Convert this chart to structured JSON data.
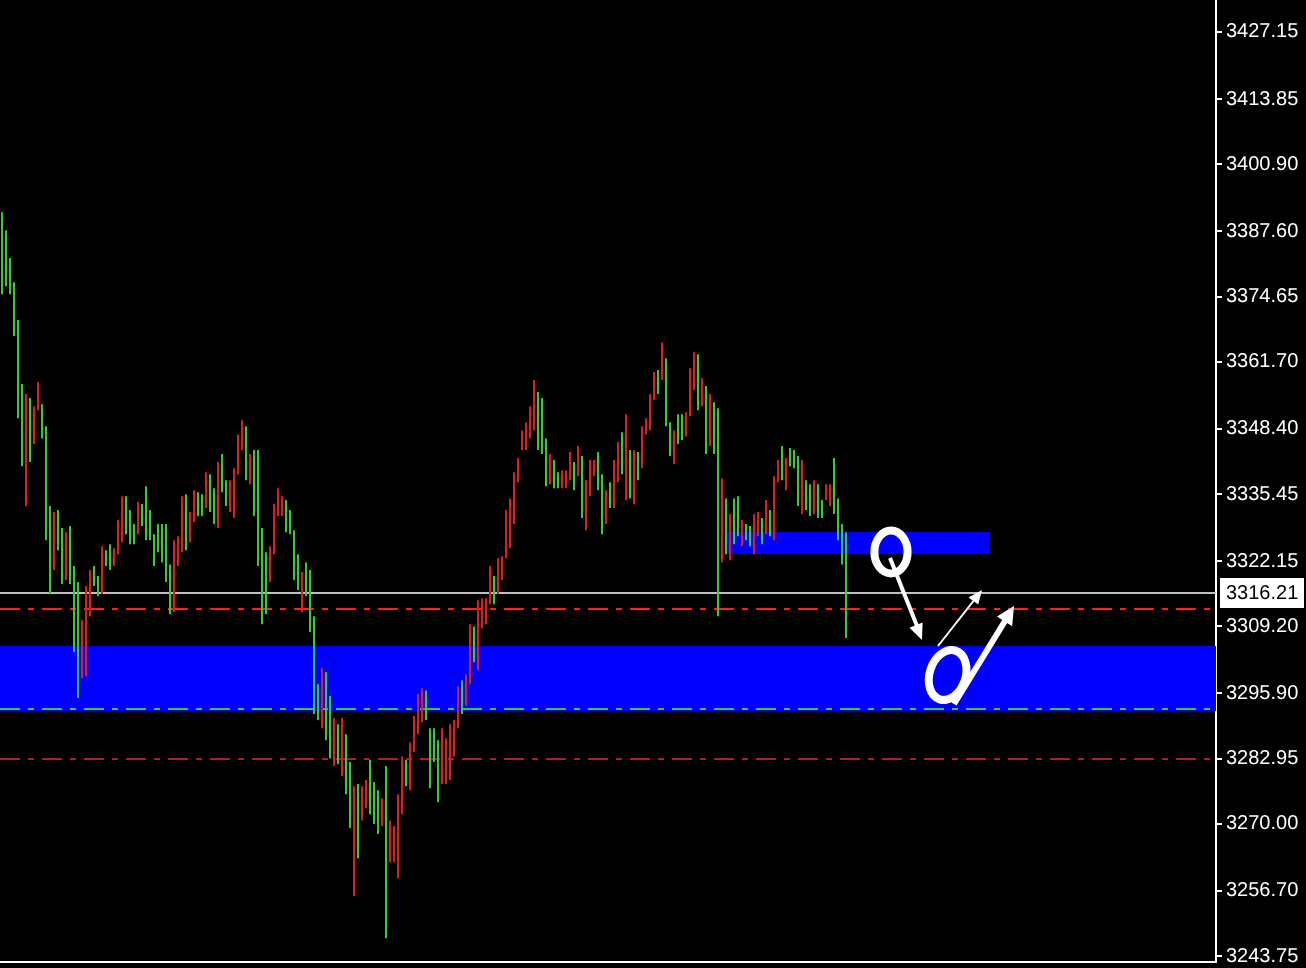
{
  "chart_data": {
    "type": "candlestick",
    "categories": [
      null,
      null,
      null,
      null,
      null,
      null,
      null,
      null,
      null,
      null,
      null,
      null,
      null,
      null,
      null,
      null,
      null,
      null,
      null,
      null,
      null,
      null,
      null,
      null,
      null,
      null,
      null,
      null,
      null,
      null,
      null,
      null,
      null,
      null,
      null,
      null,
      null,
      null,
      null,
      null,
      null,
      null,
      null,
      null,
      null,
      null,
      null,
      null,
      null,
      null,
      null,
      null,
      null,
      null,
      null,
      null,
      null,
      null,
      null,
      null,
      null,
      null,
      null,
      null,
      null,
      null,
      null,
      null,
      null,
      null,
      null,
      null,
      null,
      null,
      null,
      null,
      null,
      null,
      null,
      null,
      null,
      null,
      null,
      null,
      null,
      null,
      null,
      null,
      null,
      null,
      null,
      null,
      null,
      null,
      null,
      null,
      null,
      null,
      null,
      null,
      null,
      null,
      null,
      null,
      null,
      null,
      null,
      null,
      null,
      null,
      null,
      null,
      null,
      null,
      null,
      null,
      null,
      null,
      null,
      null,
      null,
      null,
      null,
      null,
      null,
      null,
      null,
      null,
      null,
      null,
      null,
      null,
      null,
      null,
      null,
      null,
      null,
      null,
      null,
      null,
      null,
      null,
      null,
      null,
      null,
      null,
      null,
      null,
      null,
      null,
      null,
      null,
      null,
      null,
      null,
      null,
      null,
      null,
      null,
      null,
      null,
      null,
      null,
      null,
      null,
      null,
      null,
      null,
      null,
      null,
      null,
      null,
      null,
      null,
      null,
      null,
      null,
      null,
      null,
      null,
      null,
      null,
      null,
      null,
      null,
      null,
      null,
      null,
      null,
      null,
      null,
      null,
      null,
      null,
      null,
      null,
      null,
      null,
      null,
      null,
      null,
      null,
      null,
      null,
      null,
      null,
      null,
      null,
      null,
      null,
      null,
      null,
      null,
      null,
      null,
      null,
      null,
      null,
      null,
      null,
      null,
      null,
      null,
      null,
      null,
      null,
      null,
      null,
      null,
      null,
      null,
      null,
      null,
      null,
      null,
      null,
      null,
      null,
      null,
      null,
      null,
      null,
      null,
      null,
      null,
      null,
      null,
      null,
      null,
      null,
      null,
      null,
      null,
      null,
      null,
      null,
      null,
      null,
      null,
      null,
      null,
      null,
      null,
      null,
      null,
      null,
      null,
      null,
      null,
      null,
      null,
      null,
      null,
      null,
      null,
      null,
      null,
      null,
      null,
      null,
      null,
      null,
      null,
      null,
      null,
      null,
      null,
      null,
      null,
      null,
      null,
      null,
      null,
      null,
      null,
      null,
      null,
      null,
      null,
      null,
      null,
      null,
      null,
      null
    ],
    "ohlc": [
      [
        3375.1,
        3391.4,
        3375.1,
        3391.4
      ],
      [
        3376.7,
        3387.8,
        3376.7,
        3387.8
      ],
      [
        3375.1,
        3382.3,
        3375.1,
        3382.3
      ],
      [
        3366.8,
        3377.5,
        3366.8,
        3377.5
      ],
      [
        3350.5,
        3370.0,
        3350.5,
        3370.0
      ],
      [
        3341.0,
        3357.3,
        3341.0,
        3357.3
      ],
      [
        3355.3,
        3355.3,
        3333.1,
        3333.1
      ],
      [
        3341.8,
        3354.5,
        3341.8,
        3354.5
      ],
      [
        3352.9,
        3352.9,
        3345.4,
        3345.4
      ],
      [
        3357.7,
        3357.7,
        3352.1,
        3352.1
      ],
      [
        3346.5,
        3353.3,
        3346.5,
        3353.3
      ],
      [
        3326.3,
        3348.9,
        3326.3,
        3348.9
      ],
      [
        3315.6,
        3333.1,
        3315.6,
        3333.1
      ],
      [
        3331.9,
        3331.9,
        3320.4,
        3320.4
      ],
      [
        3324.3,
        3332.3,
        3324.3,
        3332.3
      ],
      [
        3317.6,
        3328.7,
        3317.6,
        3328.7
      ],
      [
        3327.9,
        3327.9,
        3318.4,
        3318.4
      ],
      [
        3317.6,
        3329.1,
        3317.6,
        3329.1
      ],
      [
        3304.1,
        3321.2,
        3304.1,
        3321.2
      ],
      [
        3295.0,
        3318.0,
        3295.0,
        3318.0
      ],
      [
        3310.4,
        3310.4,
        3298.9,
        3298.9
      ],
      [
        3317.2,
        3317.2,
        3299.3,
        3299.3
      ],
      [
        3320.4,
        3320.4,
        3311.2,
        3311.2
      ],
      [
        3317.2,
        3321.2,
        3317.2,
        3321.2
      ],
      [
        3315.2,
        3319.2,
        3315.2,
        3319.2
      ],
      [
        3325.1,
        3325.1,
        3315.6,
        3315.6
      ],
      [
        3321.2,
        3324.3,
        3321.2,
        3324.3
      ],
      [
        3320.4,
        3325.5,
        3320.4,
        3325.5
      ],
      [
        3324.7,
        3324.7,
        3321.2,
        3321.2
      ],
      [
        3330.3,
        3330.3,
        3323.5,
        3323.5
      ],
      [
        3335.0,
        3335.0,
        3325.9,
        3325.9
      ],
      [
        3327.5,
        3335.0,
        3327.5,
        3335.0
      ],
      [
        3325.5,
        3332.3,
        3325.5,
        3332.3
      ],
      [
        3325.5,
        3329.5,
        3325.5,
        3329.5
      ],
      [
        3333.9,
        3333.9,
        3327.5,
        3327.5
      ],
      [
        3329.1,
        3333.5,
        3329.1,
        3333.5
      ],
      [
        3326.3,
        3337.0,
        3326.3,
        3337.0
      ],
      [
        3326.3,
        3332.3,
        3326.3,
        3332.3
      ],
      [
        3321.2,
        3327.5,
        3321.2,
        3327.5
      ],
      [
        3323.9,
        3329.5,
        3323.9,
        3329.5
      ],
      [
        3321.9,
        3329.5,
        3321.9,
        3329.5
      ],
      [
        3318.0,
        3329.5,
        3318.0,
        3329.5
      ],
      [
        3311.6,
        3321.5,
        3311.6,
        3321.5
      ],
      [
        3326.3,
        3326.3,
        3312.0,
        3312.0
      ],
      [
        3327.1,
        3327.1,
        3321.2,
        3321.2
      ],
      [
        3335.0,
        3335.0,
        3323.9,
        3323.9
      ],
      [
        3324.3,
        3335.4,
        3324.3,
        3335.4
      ],
      [
        3331.9,
        3331.9,
        3325.9,
        3325.9
      ],
      [
        3336.2,
        3336.2,
        3329.9,
        3329.9
      ],
      [
        3331.1,
        3335.8,
        3331.1,
        3335.8
      ],
      [
        3331.1,
        3335.4,
        3331.1,
        3335.4
      ],
      [
        3339.8,
        3339.8,
        3332.7,
        3332.7
      ],
      [
        3331.9,
        3339.4,
        3331.9,
        3339.4
      ],
      [
        3329.5,
        3336.6,
        3329.5,
        3336.6
      ],
      [
        3341.8,
        3341.8,
        3328.7,
        3328.7
      ],
      [
        3335.8,
        3343.4,
        3335.8,
        3343.4
      ],
      [
        3333.1,
        3338.2,
        3333.1,
        3338.2
      ],
      [
        3338.2,
        3338.2,
        3331.9,
        3331.9
      ],
      [
        3340.6,
        3340.6,
        3330.7,
        3330.7
      ],
      [
        3347.3,
        3347.3,
        3339.4,
        3339.4
      ],
      [
        3350.1,
        3350.1,
        3344.2,
        3344.2
      ],
      [
        3338.2,
        3348.9,
        3338.2,
        3348.9
      ],
      [
        3343.4,
        3343.4,
        3337.4,
        3337.4
      ],
      [
        3331.1,
        3344.2,
        3331.1,
        3344.2
      ],
      [
        3321.2,
        3344.2,
        3321.2,
        3344.2
      ],
      [
        3309.6,
        3328.7,
        3309.6,
        3328.7
      ],
      [
        3311.6,
        3323.9,
        3311.6,
        3323.9
      ],
      [
        3325.1,
        3325.1,
        3318.0,
        3318.0
      ],
      [
        3333.5,
        3333.5,
        3323.5,
        3323.5
      ],
      [
        3336.6,
        3336.6,
        3331.1,
        3331.1
      ],
      [
        3335.0,
        3335.0,
        3331.1,
        3331.1
      ],
      [
        3327.9,
        3334.3,
        3327.9,
        3334.3
      ],
      [
        3327.5,
        3332.3,
        3327.5,
        3332.3
      ],
      [
        3318.4,
        3328.3,
        3318.4,
        3328.3
      ],
      [
        3316.4,
        3323.5,
        3316.4,
        3323.5
      ],
      [
        3320.0,
        3320.0,
        3312.0,
        3312.0
      ],
      [
        3315.2,
        3321.9,
        3315.2,
        3321.9
      ],
      [
        3308.1,
        3320.4,
        3308.1,
        3320.4
      ],
      [
        3291.8,
        3311.2,
        3291.8,
        3311.2
      ],
      [
        3290.6,
        3297.7,
        3290.6,
        3297.7
      ],
      [
        3300.9,
        3300.9,
        3289.0,
        3289.0
      ],
      [
        3286.6,
        3300.1,
        3286.6,
        3300.1
      ],
      [
        3283.0,
        3295.4,
        3283.0,
        3295.4
      ],
      [
        3291.0,
        3291.0,
        3281.5,
        3281.5
      ],
      [
        3281.9,
        3289.8,
        3281.9,
        3289.8
      ],
      [
        3291.0,
        3291.0,
        3279.5,
        3279.5
      ],
      [
        3275.9,
        3287.8,
        3275.9,
        3287.8
      ],
      [
        3269.2,
        3282.3,
        3269.2,
        3282.3
      ],
      [
        3277.5,
        3277.5,
        3255.7,
        3255.7
      ],
      [
        3263.2,
        3277.9,
        3263.2,
        3277.9
      ],
      [
        3277.5,
        3277.5,
        3270.7,
        3270.7
      ],
      [
        3278.7,
        3278.7,
        3273.1,
        3273.1
      ],
      [
        3271.9,
        3282.7,
        3271.9,
        3282.7
      ],
      [
        3270.0,
        3278.3,
        3270.0,
        3278.3
      ],
      [
        3268.0,
        3276.7,
        3268.0,
        3276.7
      ],
      [
        3275.1,
        3275.1,
        3269.6,
        3269.6
      ],
      [
        3247.3,
        3281.5,
        3247.3,
        3281.5
      ],
      [
        3270.7,
        3270.7,
        3262.4,
        3262.4
      ],
      [
        3269.6,
        3269.6,
        3262.4,
        3262.4
      ],
      [
        3275.9,
        3275.9,
        3259.2,
        3259.2
      ],
      [
        3283.4,
        3283.4,
        3271.9,
        3271.9
      ],
      [
        3277.5,
        3282.7,
        3277.5,
        3282.7
      ],
      [
        3286.2,
        3286.2,
        3276.7,
        3276.7
      ],
      [
        3291.4,
        3291.4,
        3284.2,
        3284.2
      ],
      [
        3295.8,
        3295.8,
        3287.8,
        3287.8
      ],
      [
        3296.9,
        3296.9,
        3290.2,
        3290.2
      ],
      [
        3290.6,
        3296.5,
        3290.6,
        3296.5
      ],
      [
        3277.1,
        3289.0,
        3277.1,
        3289.0
      ],
      [
        3282.3,
        3289.0,
        3282.3,
        3289.0
      ],
      [
        3274.3,
        3286.6,
        3274.3,
        3286.6
      ],
      [
        3289.0,
        3289.0,
        3277.9,
        3277.9
      ],
      [
        3287.0,
        3287.0,
        3277.9,
        3277.9
      ],
      [
        3289.8,
        3289.8,
        3278.7,
        3278.7
      ],
      [
        3290.6,
        3290.6,
        3283.4,
        3283.4
      ],
      [
        3297.3,
        3297.3,
        3289.0,
        3289.0
      ],
      [
        3291.8,
        3298.5,
        3291.8,
        3298.5
      ],
      [
        3299.7,
        3299.7,
        3293.4,
        3293.4
      ],
      [
        3309.6,
        3309.6,
        3297.7,
        3297.7
      ],
      [
        3302.1,
        3309.2,
        3302.1,
        3309.2
      ],
      [
        3314.4,
        3314.4,
        3300.5,
        3300.5
      ],
      [
        3314.8,
        3314.8,
        3308.8,
        3308.8
      ],
      [
        3314.8,
        3314.8,
        3309.6,
        3309.6
      ],
      [
        3321.2,
        3321.2,
        3313.6,
        3313.6
      ],
      [
        3313.6,
        3319.2,
        3313.6,
        3319.2
      ],
      [
        3322.7,
        3322.7,
        3315.6,
        3315.6
      ],
      [
        3323.1,
        3323.1,
        3318.4,
        3318.4
      ],
      [
        3332.3,
        3332.3,
        3322.7,
        3322.7
      ],
      [
        3334.6,
        3334.6,
        3324.7,
        3324.7
      ],
      [
        3339.8,
        3339.8,
        3329.5,
        3329.5
      ],
      [
        3342.6,
        3342.6,
        3337.8,
        3337.8
      ],
      [
        3348.1,
        3348.1,
        3344.2,
        3344.2
      ],
      [
        3349.7,
        3349.7,
        3344.2,
        3344.2
      ],
      [
        3352.9,
        3352.9,
        3346.5,
        3346.5
      ],
      [
        3358.1,
        3358.1,
        3348.1,
        3348.1
      ],
      [
        3344.2,
        3355.7,
        3344.2,
        3355.7
      ],
      [
        3343.4,
        3354.5,
        3343.4,
        3354.5
      ],
      [
        3337.0,
        3346.5,
        3337.0,
        3346.5
      ],
      [
        3343.4,
        3343.4,
        3337.4,
        3337.4
      ],
      [
        3336.6,
        3342.2,
        3336.6,
        3342.2
      ],
      [
        3336.6,
        3339.8,
        3336.6,
        3339.8
      ],
      [
        3340.2,
        3340.2,
        3336.6,
        3336.6
      ],
      [
        3340.2,
        3340.2,
        3336.6,
        3336.6
      ],
      [
        3343.8,
        3343.8,
        3338.2,
        3338.2
      ],
      [
        3336.2,
        3341.8,
        3336.2,
        3341.8
      ],
      [
        3345.0,
        3345.0,
        3339.0,
        3339.0
      ],
      [
        3330.7,
        3343.0,
        3330.7,
        3343.0
      ],
      [
        3338.2,
        3338.2,
        3328.3,
        3328.3
      ],
      [
        3342.2,
        3342.2,
        3335.0,
        3335.0
      ],
      [
        3342.2,
        3342.2,
        3339.0,
        3339.0
      ],
      [
        3336.2,
        3343.8,
        3336.2,
        3343.8
      ],
      [
        3327.5,
        3339.4,
        3327.5,
        3339.4
      ],
      [
        3336.2,
        3336.2,
        3329.5,
        3329.5
      ],
      [
        3332.7,
        3337.8,
        3332.7,
        3337.8
      ],
      [
        3342.2,
        3342.2,
        3332.7,
        3332.7
      ],
      [
        3345.8,
        3345.8,
        3337.8,
        3337.8
      ],
      [
        3339.4,
        3347.7,
        3339.4,
        3347.7
      ],
      [
        3351.3,
        3351.3,
        3334.3,
        3334.3
      ],
      [
        3334.6,
        3344.2,
        3334.6,
        3344.2
      ],
      [
        3344.2,
        3344.2,
        3333.5,
        3333.5
      ],
      [
        3338.2,
        3343.8,
        3338.2,
        3343.8
      ],
      [
        3348.9,
        3348.9,
        3340.6,
        3340.6
      ],
      [
        3350.5,
        3350.5,
        3347.3,
        3347.3
      ],
      [
        3355.3,
        3355.3,
        3348.1,
        3348.1
      ],
      [
        3359.7,
        3359.7,
        3354.1,
        3354.1
      ],
      [
        3355.3,
        3360.1,
        3355.3,
        3360.1
      ],
      [
        3365.6,
        3365.6,
        3358.1,
        3358.1
      ],
      [
        3348.9,
        3362.4,
        3348.9,
        3362.4
      ],
      [
        3343.0,
        3349.7,
        3343.0,
        3349.7
      ],
      [
        3348.1,
        3348.1,
        3341.4,
        3341.4
      ],
      [
        3345.4,
        3351.3,
        3345.4,
        3351.3
      ],
      [
        3346.2,
        3351.3,
        3346.2,
        3351.3
      ],
      [
        3351.7,
        3351.7,
        3346.9,
        3346.9
      ],
      [
        3360.4,
        3360.4,
        3350.9,
        3350.9
      ],
      [
        3363.6,
        3363.6,
        3356.1,
        3356.1
      ],
      [
        3352.1,
        3363.2,
        3352.1,
        3363.2
      ],
      [
        3358.5,
        3358.5,
        3352.9,
        3352.9
      ],
      [
        3343.4,
        3356.9,
        3343.4,
        3356.9
      ],
      [
        3355.3,
        3355.3,
        3345.0,
        3345.0
      ],
      [
        3343.4,
        3353.7,
        3343.4,
        3353.7
      ],
      [
        3311.2,
        3352.5,
        3311.2,
        3352.5
      ],
      [
        3338.6,
        3338.6,
        3321.9,
        3321.9
      ],
      [
        3323.5,
        3334.6,
        3323.5,
        3334.6
      ],
      [
        3331.5,
        3331.5,
        3322.3,
        3322.3
      ],
      [
        3325.5,
        3334.6,
        3325.5,
        3334.6
      ],
      [
        3327.1,
        3335.0,
        3327.1,
        3335.0
      ],
      [
        3330.3,
        3330.3,
        3325.1,
        3325.1
      ],
      [
        3326.3,
        3329.5,
        3326.3,
        3329.5
      ],
      [
        3325.1,
        3329.1,
        3325.1,
        3329.1
      ],
      [
        3331.5,
        3331.5,
        3323.5,
        3323.5
      ],
      [
        3331.9,
        3331.9,
        3327.1,
        3327.1
      ],
      [
        3325.5,
        3330.7,
        3325.5,
        3330.7
      ],
      [
        3334.3,
        3334.3,
        3327.5,
        3327.5
      ],
      [
        3327.1,
        3332.3,
        3327.1,
        3332.3
      ],
      [
        3339.0,
        3339.0,
        3326.3,
        3326.3
      ],
      [
        3342.2,
        3342.2,
        3337.8,
        3337.8
      ],
      [
        3338.2,
        3345.0,
        3338.2,
        3345.0
      ],
      [
        3342.6,
        3342.6,
        3336.2,
        3336.2
      ],
      [
        3341.0,
        3344.6,
        3341.0,
        3344.6
      ],
      [
        3340.6,
        3344.2,
        3340.6,
        3344.2
      ],
      [
        3333.1,
        3343.0,
        3333.1,
        3343.0
      ],
      [
        3342.2,
        3342.2,
        3331.5,
        3331.5
      ],
      [
        3332.3,
        3338.2,
        3332.3,
        3338.2
      ],
      [
        3331.1,
        3337.4,
        3331.1,
        3337.4
      ],
      [
        3338.2,
        3338.2,
        3331.5,
        3331.5
      ],
      [
        3330.7,
        3337.4,
        3330.7,
        3337.4
      ],
      [
        3330.7,
        3334.3,
        3330.7,
        3334.3
      ],
      [
        3337.4,
        3337.4,
        3334.3,
        3334.3
      ],
      [
        3337.4,
        3337.4,
        3333.1,
        3333.1
      ],
      [
        3331.5,
        3342.6,
        3331.5,
        3342.6
      ],
      [
        3326.3,
        3334.6,
        3326.3,
        3334.6
      ],
      [
        3321.5,
        3329.5,
        3321.5,
        3329.5
      ],
      [
        3306.9,
        3327.9,
        3306.9,
        3327.9
      ],
      null,
      null,
      null,
      null,
      null,
      null,
      null,
      null,
      null,
      null,
      null,
      null,
      null,
      null,
      null,
      null,
      null,
      null,
      null,
      null,
      null,
      null,
      null,
      null,
      null,
      null,
      null,
      null,
      null,
      null,
      null,
      null,
      null,
      null,
      null,
      null,
      null,
      null,
      null,
      null,
      null,
      null,
      null,
      null,
      null,
      null,
      null,
      null,
      null,
      null,
      null,
      null,
      null,
      null,
      null,
      null,
      null,
      null,
      null,
      null,
      null,
      null,
      null,
      null,
      null,
      null,
      null,
      null,
      null,
      null,
      null,
      null,
      null,
      null,
      null,
      null,
      null,
      null,
      null,
      null,
      null,
      null,
      null,
      null,
      null,
      null,
      null,
      null,
      null,
      null,
      null,
      null
    ],
    "colors": [
      "#32cd32",
      "#32cd32",
      "#32cd32",
      "#32cd32",
      "#32cd32",
      "#32cd32",
      "#dc1e1e",
      "#32cd32",
      "#dc1e1e",
      "#dc1e1e",
      "#32cd32",
      "#32cd32",
      "#32cd32",
      "#dc1e1e",
      "#32cd32",
      "#32cd32",
      "#dc1e1e",
      "#32cd32",
      "#32cd32",
      "#32cd32",
      "#dc1e1e",
      "#dc1e1e",
      "#dc1e1e",
      "#32cd32",
      "#32cd32",
      "#dc1e1e",
      "#32cd32",
      "#32cd32",
      "#dc1e1e",
      "#dc1e1e",
      "#dc1e1e",
      "#32cd32",
      "#32cd32",
      "#32cd32",
      "#dc1e1e",
      "#32cd32",
      "#32cd32",
      "#32cd32",
      "#32cd32",
      "#32cd32",
      "#32cd32",
      "#32cd32",
      "#32cd32",
      "#dc1e1e",
      "#dc1e1e",
      "#dc1e1e",
      "#32cd32",
      "#dc1e1e",
      "#dc1e1e",
      "#32cd32",
      "#32cd32",
      "#dc1e1e",
      "#32cd32",
      "#32cd32",
      "#dc1e1e",
      "#32cd32",
      "#32cd32",
      "#dc1e1e",
      "#dc1e1e",
      "#dc1e1e",
      "#dc1e1e",
      "#32cd32",
      "#dc1e1e",
      "#32cd32",
      "#32cd32",
      "#32cd32",
      "#32cd32",
      "#dc1e1e",
      "#dc1e1e",
      "#dc1e1e",
      "#dc1e1e",
      "#32cd32",
      "#32cd32",
      "#32cd32",
      "#32cd32",
      "#dc1e1e",
      "#32cd32",
      "#32cd32",
      "#32cd32",
      "#32cd32",
      "#dc1e1e",
      "#32cd32",
      "#32cd32",
      "#dc1e1e",
      "#32cd32",
      "#dc1e1e",
      "#32cd32",
      "#32cd32",
      "#dc1e1e",
      "#32cd32",
      "#dc1e1e",
      "#dc1e1e",
      "#32cd32",
      "#32cd32",
      "#32cd32",
      "#dc1e1e",
      "#32cd32",
      "#dc1e1e",
      "#dc1e1e",
      "#dc1e1e",
      "#dc1e1e",
      "#32cd32",
      "#dc1e1e",
      "#dc1e1e",
      "#dc1e1e",
      "#dc1e1e",
      "#32cd32",
      "#32cd32",
      "#32cd32",
      "#32cd32",
      "#dc1e1e",
      "#dc1e1e",
      "#dc1e1e",
      "#dc1e1e",
      "#dc1e1e",
      "#32cd32",
      "#dc1e1e",
      "#dc1e1e",
      "#32cd32",
      "#dc1e1e",
      "#dc1e1e",
      "#dc1e1e",
      "#dc1e1e",
      "#32cd32",
      "#dc1e1e",
      "#dc1e1e",
      "#dc1e1e",
      "#dc1e1e",
      "#dc1e1e",
      "#dc1e1e",
      "#dc1e1e",
      "#dc1e1e",
      "#dc1e1e",
      "#dc1e1e",
      "#32cd32",
      "#32cd32",
      "#32cd32",
      "#dc1e1e",
      "#32cd32",
      "#32cd32",
      "#dc1e1e",
      "#dc1e1e",
      "#dc1e1e",
      "#32cd32",
      "#dc1e1e",
      "#32cd32",
      "#dc1e1e",
      "#dc1e1e",
      "#dc1e1e",
      "#32cd32",
      "#32cd32",
      "#dc1e1e",
      "#32cd32",
      "#dc1e1e",
      "#dc1e1e",
      "#32cd32",
      "#dc1e1e",
      "#32cd32",
      "#dc1e1e",
      "#32cd32",
      "#dc1e1e",
      "#dc1e1e",
      "#dc1e1e",
      "#dc1e1e",
      "#32cd32",
      "#dc1e1e",
      "#32cd32",
      "#32cd32",
      "#dc1e1e",
      "#32cd32",
      "#32cd32",
      "#dc1e1e",
      "#dc1e1e",
      "#dc1e1e",
      "#32cd32",
      "#dc1e1e",
      "#32cd32",
      "#dc1e1e",
      "#32cd32",
      "#32cd32",
      "#dc1e1e",
      "#32cd32",
      "#dc1e1e",
      "#32cd32",
      "#32cd32",
      "#dc1e1e",
      "#32cd32",
      "#32cd32",
      "#dc1e1e",
      "#dc1e1e",
      "#32cd32",
      "#dc1e1e",
      "#32cd32",
      "#dc1e1e",
      "#dc1e1e",
      "#32cd32",
      "#dc1e1e",
      "#32cd32",
      "#32cd32",
      "#32cd32",
      "#dc1e1e",
      "#32cd32",
      "#32cd32",
      "#dc1e1e",
      "#32cd32",
      "#32cd32",
      "#dc1e1e",
      "#dc1e1e",
      "#32cd32",
      "#32cd32",
      "#32cd32",
      "#32cd32",
      null,
      null,
      null,
      null,
      null,
      null,
      null,
      null,
      null,
      null,
      null,
      null,
      null,
      null,
      null,
      null,
      null,
      null,
      null,
      null,
      null,
      null,
      null,
      null,
      null,
      null,
      null,
      null,
      null,
      null,
      null,
      null,
      null,
      null,
      null,
      null,
      null,
      null,
      null,
      null,
      null,
      null,
      null,
      null,
      null,
      null,
      null,
      null,
      null,
      null,
      null,
      null,
      null,
      null,
      null,
      null,
      null,
      null,
      null,
      null,
      null,
      null,
      null,
      null,
      null,
      null,
      null,
      null,
      null,
      null,
      null,
      null,
      null,
      null,
      null,
      null,
      null,
      null,
      null,
      null,
      null,
      null,
      null,
      null,
      null,
      null,
      null,
      null,
      null,
      null,
      null,
      null
    ],
    "ylim": [
      3242.6,
      3433.5
    ],
    "yticks": [
      3427.15,
      3413.85,
      {
        "value": 3400.9,
        "label": "3400.90"
      },
      {
        "value": 3387.6,
        "label": "3387.60"
      },
      3374.65,
      {
        "value": 3361.7,
        "label": "3361.70"
      },
      {
        "value": 3348.4,
        "label": "3348.40"
      },
      3335.45,
      3322.15,
      {
        "value": 3309.2,
        "label": "3309.20"
      },
      {
        "value": 3295.9,
        "label": "3295.90"
      },
      3282.95,
      {
        "value": 3270,
        "label": "3270.00"
      },
      {
        "value": 3256.7,
        "label": "3256.70"
      },
      3243.75
    ],
    "tick_labels": "y",
    "bands": [
      {
        "axis": "y",
        "from": 3292.4,
        "to": 3305.3,
        "color": "#0000ff"
      }
    ],
    "ref_lines": [
      {
        "axis": "y",
        "value": 3316.21,
        "label": "3316.21",
        "color": "#c0c0c0",
        "line_style": "solid"
      },
      {
        "axis": "y",
        "value": 3312.7,
        "color": "#ff1e1e",
        "line_style": "dashed"
      },
      {
        "axis": "y",
        "value": 3292.9,
        "color": "#32cd32",
        "line_style": "dashed"
      },
      {
        "axis": "y",
        "value": 3282.9,
        "color": "#b41e1e",
        "line_style": "dashed"
      }
    ]
  }
}
